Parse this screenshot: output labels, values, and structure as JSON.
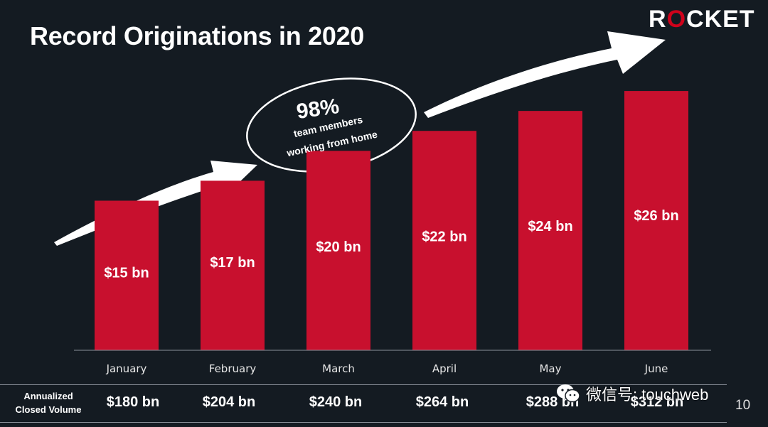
{
  "title": "Record Originations in 2020",
  "logo": {
    "before": "R",
    "ring": "O",
    "after": "CKET"
  },
  "callout": {
    "percent": "98%",
    "line1": "team members",
    "line2": "working from home"
  },
  "colors": {
    "bar": "#c8102e",
    "background": "#141b22",
    "arrow": "#ffffff"
  },
  "chart_data": {
    "type": "bar",
    "categories": [
      "January",
      "February",
      "March",
      "April",
      "May",
      "June"
    ],
    "values": [
      15,
      17,
      20,
      22,
      24,
      26
    ],
    "value_labels": [
      "$15 bn",
      "$17 bn",
      "$20 bn",
      "$22 bn",
      "$24 bn",
      "$26 bn"
    ],
    "title": "Record Originations in 2020",
    "xlabel": "",
    "ylabel": "",
    "ylim": [
      0,
      28
    ],
    "grid": false
  },
  "annualized": {
    "label_line1": "Annualized",
    "label_line2": "Closed Volume",
    "values": [
      "$180 bn",
      "$204 bn",
      "$240 bn",
      "$264 bn",
      "$288 bn",
      "$312 bn"
    ]
  },
  "page_number": "10",
  "watermark": {
    "icon": "wechat-icon",
    "text": "微信号: touchweb"
  }
}
